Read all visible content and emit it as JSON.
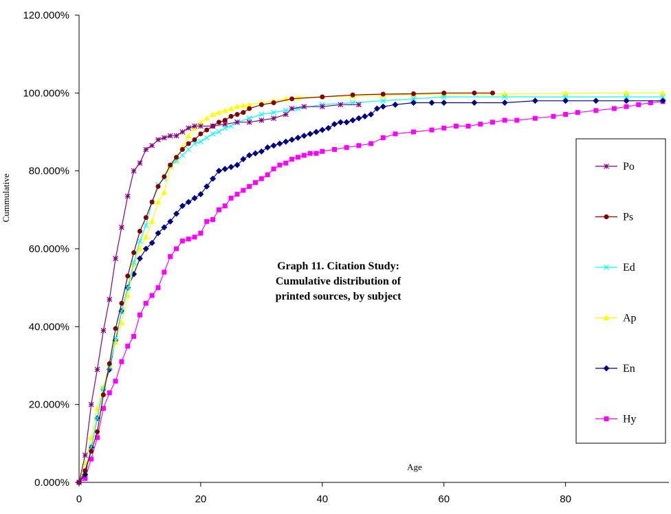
{
  "chart_data": {
    "type": "line",
    "title": "",
    "annotation": [
      "Graph 11.  Citation Study:",
      "Cumulative distribution of",
      "printed sources, by subject"
    ],
    "xlabel": "Age",
    "ylabel": "Cummulative",
    "xlim": [
      0,
      97
    ],
    "ylim": [
      0,
      1.2
    ],
    "x_ticks": [
      0,
      20,
      40,
      60,
      80
    ],
    "x_tick_labels": [
      "0",
      "20",
      "40",
      "60",
      "80"
    ],
    "y_ticks": [
      0,
      0.2,
      0.4,
      0.6,
      0.8,
      1.0,
      1.2
    ],
    "y_tick_labels": [
      "0.000%",
      "20.000%",
      "40.000%",
      "60.000%",
      "80.000%",
      "100.000%",
      "120.000%"
    ],
    "grid": false,
    "legend_position": "right",
    "series": [
      {
        "name": "Po",
        "color": "#800080",
        "marker": "star",
        "x": [
          0,
          1,
          2,
          3,
          4,
          5,
          6,
          7,
          8,
          9,
          10,
          11,
          12,
          13,
          14,
          15,
          16,
          17,
          18,
          19,
          20,
          22,
          24,
          26,
          28,
          30,
          32,
          34,
          35,
          37,
          40,
          43,
          46
        ],
        "y": [
          0,
          0.07,
          0.2,
          0.29,
          0.39,
          0.47,
          0.575,
          0.655,
          0.735,
          0.8,
          0.82,
          0.855,
          0.865,
          0.88,
          0.885,
          0.89,
          0.89,
          0.9,
          0.91,
          0.915,
          0.915,
          0.915,
          0.92,
          0.925,
          0.925,
          0.93,
          0.935,
          0.945,
          0.96,
          0.965,
          0.965,
          0.97,
          0.97
        ]
      },
      {
        "name": "Ps",
        "color": "#800000",
        "marker": "circle",
        "x": [
          0,
          1,
          2,
          3,
          4,
          5,
          6,
          7,
          8,
          9,
          10,
          11,
          12,
          13,
          14,
          15,
          16,
          17,
          18,
          19,
          20,
          21,
          22,
          23,
          24,
          25,
          26,
          27,
          28,
          30,
          32,
          35,
          40,
          45,
          50,
          55,
          60,
          65,
          68
        ],
        "y": [
          0,
          0.03,
          0.08,
          0.13,
          0.225,
          0.305,
          0.395,
          0.46,
          0.53,
          0.59,
          0.645,
          0.68,
          0.72,
          0.76,
          0.785,
          0.815,
          0.835,
          0.855,
          0.87,
          0.88,
          0.895,
          0.905,
          0.915,
          0.925,
          0.93,
          0.94,
          0.945,
          0.95,
          0.96,
          0.97,
          0.975,
          0.985,
          0.99,
          0.995,
          0.997,
          0.998,
          1.0,
          1.0,
          1.0
        ]
      },
      {
        "name": "Ed",
        "color": "#00ffff",
        "marker": "x",
        "x": [
          0,
          1,
          2,
          3,
          4,
          5,
          6,
          7,
          8,
          9,
          10,
          11,
          12,
          13,
          14,
          15,
          16,
          17,
          18,
          19,
          20,
          21,
          22,
          23,
          24,
          25,
          26,
          28,
          30,
          32,
          34,
          36,
          40,
          45,
          50,
          55,
          60,
          70,
          80,
          90,
          96
        ],
        "y": [
          0,
          0.03,
          0.09,
          0.165,
          0.24,
          0.295,
          0.37,
          0.44,
          0.5,
          0.565,
          0.62,
          0.66,
          0.72,
          0.765,
          0.78,
          0.815,
          0.825,
          0.84,
          0.855,
          0.87,
          0.875,
          0.885,
          0.895,
          0.9,
          0.91,
          0.915,
          0.925,
          0.935,
          0.945,
          0.95,
          0.955,
          0.96,
          0.97,
          0.975,
          0.98,
          0.985,
          0.99,
          0.99,
          0.99,
          0.99,
          0.99
        ]
      },
      {
        "name": "Ap",
        "color": "#ffff00",
        "marker": "triangle",
        "x": [
          0,
          1,
          2,
          3,
          4,
          5,
          6,
          7,
          8,
          9,
          10,
          11,
          12,
          13,
          14,
          15,
          16,
          17,
          18,
          19,
          20,
          21,
          22,
          23,
          24,
          25,
          26,
          27,
          28,
          30,
          32,
          34,
          36,
          40,
          45,
          50,
          55,
          60,
          70,
          80,
          90,
          96
        ],
        "y": [
          0,
          0.05,
          0.115,
          0.19,
          0.245,
          0.3,
          0.36,
          0.41,
          0.48,
          0.56,
          0.6,
          0.63,
          0.67,
          0.72,
          0.745,
          0.81,
          0.83,
          0.86,
          0.89,
          0.91,
          0.925,
          0.935,
          0.945,
          0.95,
          0.955,
          0.96,
          0.965,
          0.968,
          0.97,
          0.975,
          0.98,
          0.985,
          0.988,
          0.99,
          0.992,
          0.994,
          0.996,
          0.997,
          0.998,
          0.999,
          1.0,
          1.0
        ]
      },
      {
        "name": "En",
        "color": "#000080",
        "marker": "diamond",
        "x": [
          0,
          1,
          2,
          3,
          4,
          5,
          6,
          7,
          8,
          9,
          10,
          11,
          12,
          13,
          14,
          15,
          16,
          17,
          18,
          19,
          20,
          21,
          22,
          23,
          24,
          25,
          26,
          27,
          28,
          29,
          30,
          31,
          32,
          33,
          34,
          35,
          36,
          37,
          38,
          39,
          40,
          41,
          42,
          43,
          44,
          45,
          46,
          47,
          48,
          49,
          50,
          52,
          55,
          58,
          60,
          65,
          70,
          75,
          80,
          85,
          90,
          96
        ],
        "y": [
          0,
          0.02,
          0.09,
          0.165,
          0.24,
          0.29,
          0.365,
          0.44,
          0.5,
          0.535,
          0.575,
          0.6,
          0.615,
          0.64,
          0.655,
          0.67,
          0.69,
          0.71,
          0.72,
          0.73,
          0.74,
          0.76,
          0.78,
          0.8,
          0.805,
          0.81,
          0.815,
          0.83,
          0.84,
          0.845,
          0.85,
          0.86,
          0.865,
          0.87,
          0.875,
          0.88,
          0.885,
          0.89,
          0.895,
          0.9,
          0.905,
          0.91,
          0.92,
          0.925,
          0.925,
          0.93,
          0.935,
          0.94,
          0.945,
          0.96,
          0.965,
          0.97,
          0.975,
          0.975,
          0.975,
          0.975,
          0.975,
          0.98,
          0.98,
          0.98,
          0.98,
          0.98
        ]
      },
      {
        "name": "Hy",
        "color": "#ff00ff",
        "marker": "square",
        "x": [
          0,
          1,
          2,
          3,
          4,
          5,
          6,
          7,
          8,
          9,
          10,
          11,
          12,
          13,
          14,
          15,
          16,
          17,
          18,
          19,
          20,
          21,
          22,
          23,
          24,
          25,
          26,
          27,
          28,
          29,
          30,
          31,
          32,
          33,
          34,
          35,
          36,
          37,
          38,
          39,
          40,
          42,
          44,
          46,
          48,
          50,
          52,
          55,
          58,
          60,
          62,
          64,
          66,
          68,
          70,
          72,
          75,
          78,
          80,
          82,
          85,
          88,
          90,
          92,
          94,
          96
        ],
        "y": [
          0,
          0.01,
          0.06,
          0.115,
          0.19,
          0.23,
          0.26,
          0.31,
          0.35,
          0.375,
          0.43,
          0.46,
          0.48,
          0.5,
          0.54,
          0.58,
          0.6,
          0.62,
          0.625,
          0.63,
          0.64,
          0.67,
          0.675,
          0.7,
          0.71,
          0.73,
          0.74,
          0.75,
          0.76,
          0.77,
          0.78,
          0.79,
          0.805,
          0.815,
          0.82,
          0.83,
          0.835,
          0.84,
          0.845,
          0.845,
          0.85,
          0.855,
          0.86,
          0.865,
          0.87,
          0.885,
          0.895,
          0.9,
          0.905,
          0.91,
          0.915,
          0.915,
          0.92,
          0.925,
          0.93,
          0.93,
          0.935,
          0.94,
          0.945,
          0.95,
          0.955,
          0.96,
          0.965,
          0.97,
          0.975,
          0.978
        ]
      }
    ]
  }
}
